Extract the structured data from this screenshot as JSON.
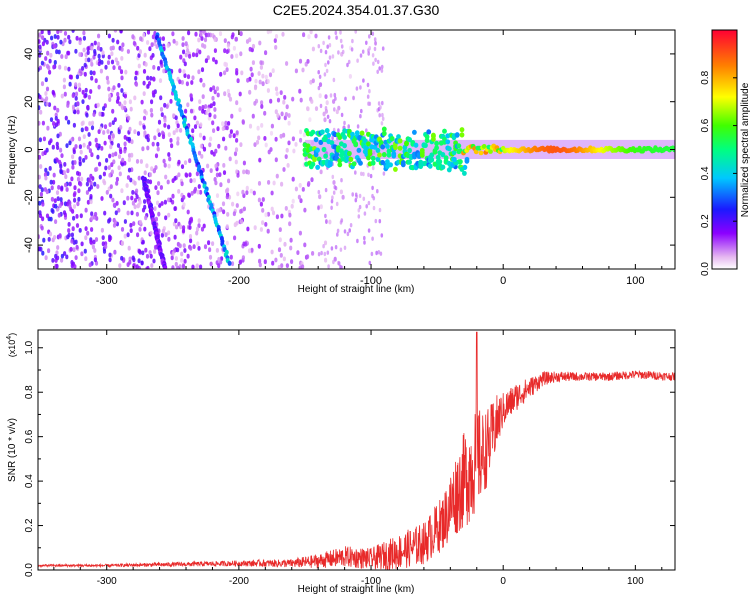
{
  "title": "C2E5.2024.354.01.37.G30",
  "chart_data": [
    {
      "type": "heatmap",
      "name": "spectrogram",
      "xlabel": "Height of straight line (km)",
      "ylabel": "Frequency (Hz)",
      "xlim": [
        -352,
        130
      ],
      "ylim": [
        -50,
        50
      ],
      "xticks": [
        -300,
        -200,
        -100,
        0,
        100
      ],
      "yticks": [
        -40,
        -20,
        0,
        20,
        40
      ],
      "colorbar": {
        "label": "Normalized spectral amplitude",
        "range": [
          0,
          1
        ],
        "ticks": [
          0.0,
          0.2,
          0.4,
          0.6,
          0.8
        ]
      },
      "features": [
        {
          "name": "main-carrier",
          "kind": "band",
          "x_range": [
            -150,
            130
          ],
          "freq_center": 0,
          "freq_halfwidth": 4,
          "peak_amplitude": 0.9
        },
        {
          "name": "tilted-track",
          "kind": "line",
          "points": [
            [
              -262,
              48
            ],
            [
              -207,
              -48
            ]
          ],
          "amplitude": 0.4
        },
        {
          "name": "faint-track",
          "kind": "line",
          "points": [
            [
              -272,
              -12
            ],
            [
              -256,
              -50
            ]
          ],
          "amplitude": 0.2
        },
        {
          "name": "noise-field",
          "kind": "noise",
          "x_range": [
            -352,
            -100
          ],
          "amplitude": 0.25
        }
      ]
    },
    {
      "type": "line",
      "name": "snr",
      "xlabel": "Height of straight line (km)",
      "ylabel": "SNR (10 * v/v)",
      "yscale_label": "(x10",
      "yscale_exponent": "4",
      "xlim": [
        -352,
        130
      ],
      "ylim": [
        0,
        1.08
      ],
      "xticks": [
        -300,
        -200,
        -100,
        0,
        100
      ],
      "yticks": [
        0.0,
        0.2,
        0.4,
        0.6,
        0.8,
        1.0
      ],
      "color": "#e82a2a",
      "series": [
        {
          "name": "SNR",
          "x": [
            -352,
            -300,
            -250,
            -200,
            -160,
            -140,
            -120,
            -100,
            -80,
            -60,
            -45,
            -35,
            -25,
            -20,
            -15,
            -10,
            -5,
            0,
            10,
            20,
            30,
            40,
            60,
            80,
            100,
            130
          ],
          "values": [
            0.02,
            0.02,
            0.025,
            0.03,
            0.03,
            0.04,
            0.06,
            0.05,
            0.08,
            0.12,
            0.22,
            0.35,
            0.45,
            0.5,
            0.52,
            0.58,
            0.66,
            0.72,
            0.78,
            0.82,
            0.86,
            0.87,
            0.87,
            0.87,
            0.88,
            0.87
          ],
          "noise": [
            0.003,
            0.004,
            0.006,
            0.008,
            0.012,
            0.02,
            0.03,
            0.03,
            0.05,
            0.06,
            0.08,
            0.12,
            0.15,
            0.15,
            0.12,
            0.1,
            0.08,
            0.05,
            0.04,
            0.03,
            0.02,
            0.015,
            0.012,
            0.012,
            0.012,
            0.012
          ],
          "spike": {
            "x": -20,
            "value": 1.07
          }
        }
      ]
    }
  ]
}
